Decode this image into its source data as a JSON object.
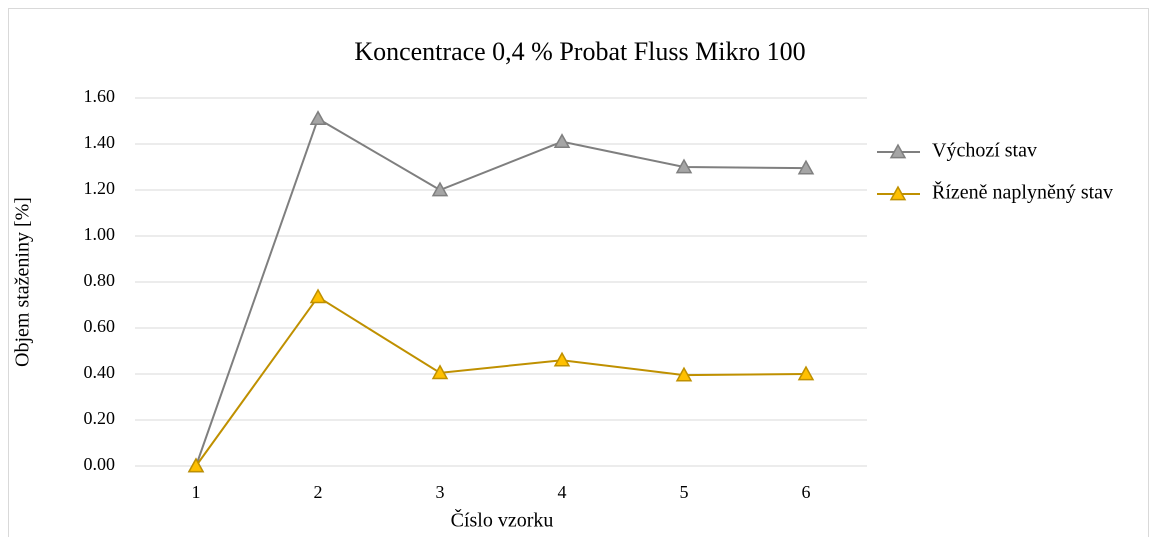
{
  "chart_data": {
    "type": "line",
    "title": "Koncentrace 0,4 % Probat Fluss Mikro 100",
    "x_label": "Číslo vzorku",
    "y_label": "Objem staženiny [%]",
    "categories": [
      "1",
      "2",
      "3",
      "4",
      "5",
      "6"
    ],
    "series": [
      {
        "name": "Výchozí stav",
        "color": "#7f7f7f",
        "marker_color": "#a5a5a5",
        "values": [
          0,
          1.51,
          1.2,
          1.41,
          1.3,
          1.295
        ]
      },
      {
        "name": "Řízeně naplyněný stav",
        "color": "#bf9000",
        "marker_color": "#ffc000",
        "values": [
          0,
          0.735,
          0.405,
          0.46,
          0.395,
          0.4
        ]
      }
    ],
    "ylim": [
      0,
      1.6
    ],
    "yticks": [
      {
        "value": 0,
        "label": "0.00"
      },
      {
        "value": 0.2,
        "label": "0.20"
      },
      {
        "value": 0.4,
        "label": "0.40"
      },
      {
        "value": 0.6,
        "label": "0.60"
      },
      {
        "value": 0.8,
        "label": "0.80"
      },
      {
        "value": 1.0,
        "label": "1.00"
      },
      {
        "value": 1.2,
        "label": "1.20"
      },
      {
        "value": 1.4,
        "label": "1.40"
      },
      {
        "value": 1.6,
        "label": "1.60"
      }
    ],
    "grid": true,
    "legend": "right"
  }
}
